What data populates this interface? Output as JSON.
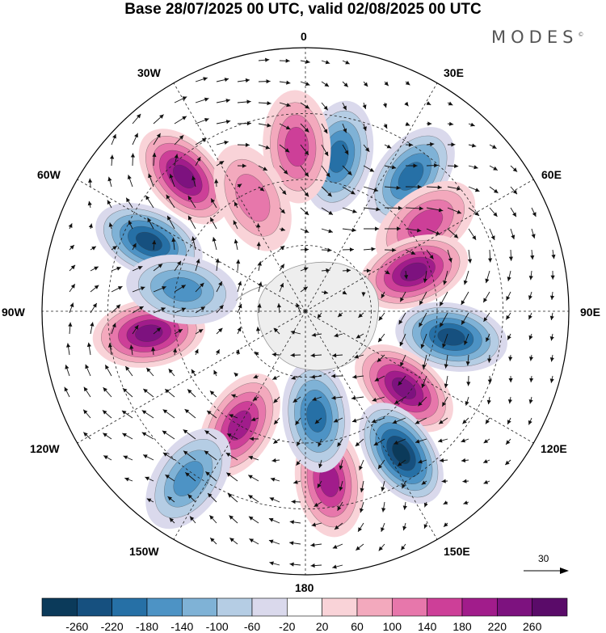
{
  "title": "Base 28/07/2025 00 UTC, valid 02/08/2025 00 UTC",
  "brand": "MODES",
  "brand_mark": "©",
  "longitude_labels": {
    "lon_0": "0",
    "lon_30e": "30E",
    "lon_60e": "60E",
    "lon_90e": "90E",
    "lon_120e": "120E",
    "lon_150e": "150E",
    "lon_180": "180",
    "lon_150w": "150W",
    "lon_120w": "120W",
    "lon_90w": "90W",
    "lon_60w": "60W",
    "lon_30w": "30W"
  },
  "vector_reference": {
    "label": "30"
  },
  "colorbar": {
    "colors": [
      "#0b3a5a",
      "#16507f",
      "#2670a6",
      "#4d93c5",
      "#7fb2d6",
      "#b5cde4",
      "#dad9ec",
      "#ffffff",
      "#f9d3d8",
      "#f3a9bd",
      "#e777ab",
      "#cd3f98",
      "#a11c8b",
      "#7d127f",
      "#5a0b69"
    ],
    "ticks": [
      "-260",
      "-220",
      "-180",
      "-140",
      "-100",
      "-60",
      "-20",
      "20",
      "60",
      "100",
      "140",
      "180",
      "220",
      "260"
    ]
  },
  "anomaly_centers": [
    {
      "lon": 12,
      "lat": -42,
      "value": -190
    },
    {
      "lon": -42,
      "lat": -35,
      "value": 230
    },
    {
      "lon": -3,
      "lat": -40,
      "value": 140
    },
    {
      "lon": 38,
      "lat": -38,
      "value": -170
    },
    {
      "lon": 54,
      "lat": -45,
      "value": 120
    },
    {
      "lon": 70,
      "lat": -55,
      "value": 210
    },
    {
      "lon": 100,
      "lat": -45,
      "value": -220
    },
    {
      "lon": 128,
      "lat": -52,
      "value": 220
    },
    {
      "lon": 146,
      "lat": -38,
      "value": -260
    },
    {
      "lon": 172,
      "lat": -38,
      "value": 170
    },
    {
      "lon": 174,
      "lat": -58,
      "value": -170
    },
    {
      "lon": -150,
      "lat": -50,
      "value": 190
    },
    {
      "lon": -145,
      "lat": -28,
      "value": -140
    },
    {
      "lon": -98,
      "lat": -42,
      "value": 220
    },
    {
      "lon": -66,
      "lat": -38,
      "value": -220
    },
    {
      "lon": -80,
      "lat": -52,
      "value": -120
    },
    {
      "lon": -25,
      "lat": -52,
      "value": 80
    }
  ]
}
